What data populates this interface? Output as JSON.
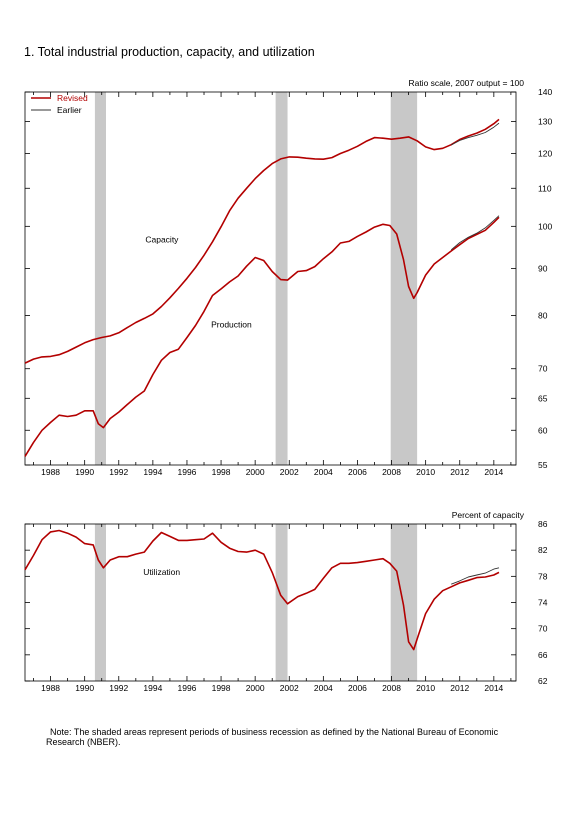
{
  "title": "1. Total industrial production, capacity, and utilization",
  "note": "Note: The shaded areas represent periods of business recession as defined by the National Bureau of Economic Research (NBER).",
  "chart_data": [
    {
      "type": "line",
      "ylabel": "Ratio scale, 2007 output = 100",
      "y_scale": "log",
      "ylim": [
        55,
        140
      ],
      "xlim": [
        1986.5,
        2015.3
      ],
      "y_ticks": [
        55,
        60,
        65,
        70,
        80,
        90,
        100,
        110,
        120,
        130,
        140
      ],
      "x_ticks": [
        1988,
        1990,
        1992,
        1994,
        1996,
        1998,
        2000,
        2002,
        2004,
        2006,
        2008,
        2010,
        2012,
        2014
      ],
      "recessions": [
        [
          1990.6,
          1991.25
        ],
        [
          2001.2,
          2001.9
        ],
        [
          2007.95,
          2009.5
        ]
      ],
      "legend": {
        "position": "top-left",
        "entries": [
          "Revised",
          "Earlier"
        ]
      },
      "annotations": [
        "Capacity",
        "Production"
      ],
      "series": [
        {
          "name": "Capacity",
          "style": "revised",
          "x": [
            1986.5,
            1987.0,
            1987.5,
            1988.0,
            1988.5,
            1989.0,
            1989.5,
            1990.0,
            1990.5,
            1991.0,
            1991.5,
            1992.0,
            1992.5,
            1993.0,
            1993.5,
            1994.0,
            1994.5,
            1995.0,
            1995.5,
            1996.0,
            1996.5,
            1997.0,
            1997.5,
            1998.0,
            1998.5,
            1999.0,
            1999.5,
            2000.0,
            2000.5,
            2001.0,
            2001.5,
            2002.0,
            2002.5,
            2003.0,
            2003.5,
            2004.0,
            2004.5,
            2005.0,
            2005.5,
            2006.0,
            2006.5,
            2007.0,
            2007.5,
            2008.0,
            2008.5,
            2009.0,
            2009.5,
            2010.0,
            2010.5,
            2011.0,
            2011.5,
            2012.0,
            2012.5,
            2013.0,
            2013.5,
            2014.0,
            2014.3
          ],
          "y": [
            71.0,
            71.7,
            72.1,
            72.2,
            72.5,
            73.1,
            73.9,
            74.7,
            75.3,
            75.7,
            76.0,
            76.6,
            77.6,
            78.6,
            79.4,
            80.3,
            81.8,
            83.6,
            85.6,
            87.8,
            90.2,
            93.0,
            96.2,
            99.9,
            104.0,
            107.3,
            110.0,
            112.7,
            115.0,
            117.0,
            118.4,
            119.0,
            118.9,
            118.6,
            118.4,
            118.3,
            118.8,
            120.0,
            121.0,
            122.2,
            123.7,
            124.9,
            124.7,
            124.4,
            124.7,
            125.1,
            123.9,
            122.0,
            121.2,
            121.6,
            122.7,
            124.3,
            125.4,
            126.3,
            127.5,
            129.3,
            130.7
          ]
        },
        {
          "name": "Capacity",
          "style": "earlier",
          "x": [
            2011.5,
            2012.0,
            2012.5,
            2013.0,
            2013.5,
            2014.0,
            2014.3
          ],
          "y": [
            122.6,
            124.0,
            124.9,
            125.6,
            126.5,
            128.2,
            129.5
          ]
        },
        {
          "name": "Production",
          "style": "revised",
          "x": [
            1986.5,
            1987.0,
            1987.5,
            1988.0,
            1988.5,
            1989.0,
            1989.5,
            1990.0,
            1990.5,
            1990.8,
            1991.1,
            1991.5,
            1992.0,
            1992.5,
            1993.0,
            1993.5,
            1994.0,
            1994.5,
            1995.0,
            1995.5,
            1996.0,
            1996.5,
            1997.0,
            1997.5,
            1998.0,
            1998.5,
            1999.0,
            1999.5,
            2000.0,
            2000.5,
            2001.0,
            2001.5,
            2001.9,
            2002.5,
            2003.0,
            2003.5,
            2004.0,
            2004.5,
            2005.0,
            2005.5,
            2006.0,
            2006.5,
            2007.0,
            2007.5,
            2007.9,
            2008.3,
            2008.7,
            2009.0,
            2009.3,
            2009.5,
            2010.0,
            2010.5,
            2011.0,
            2011.5,
            2012.0,
            2012.5,
            2013.0,
            2013.5,
            2014.0,
            2014.3
          ],
          "y": [
            56.2,
            58.2,
            60.0,
            61.2,
            62.3,
            62.1,
            62.3,
            63.0,
            63.0,
            61.0,
            60.4,
            61.8,
            62.8,
            64.0,
            65.2,
            66.2,
            69.0,
            71.5,
            72.9,
            73.5,
            75.7,
            78.0,
            80.8,
            84.1,
            85.5,
            87.0,
            88.3,
            90.5,
            92.5,
            91.8,
            89.3,
            87.5,
            87.4,
            89.3,
            89.5,
            90.4,
            92.2,
            93.8,
            95.9,
            96.3,
            97.5,
            98.6,
            99.8,
            100.5,
            100.2,
            98.1,
            92.0,
            86.0,
            83.5,
            84.7,
            88.5,
            91.0,
            92.5,
            94.0,
            95.5,
            97.0,
            98.0,
            99.0,
            101.0,
            102.3
          ]
        },
        {
          "name": "Production",
          "style": "earlier",
          "x": [
            2011.5,
            2012.0,
            2012.5,
            2013.0,
            2013.5,
            2014.0,
            2014.3
          ],
          "y": [
            94.3,
            96.0,
            97.3,
            98.3,
            99.6,
            101.5,
            102.7
          ]
        }
      ]
    },
    {
      "type": "line",
      "ylabel": "Percent of capacity",
      "ylim": [
        62,
        86
      ],
      "xlim": [
        1986.5,
        2015.3
      ],
      "y_ticks": [
        62,
        66,
        70,
        74,
        78,
        82,
        86
      ],
      "x_ticks": [
        1988,
        1990,
        1992,
        1994,
        1996,
        1998,
        2000,
        2002,
        2004,
        2006,
        2008,
        2010,
        2012,
        2014
      ],
      "recessions": [
        [
          1990.6,
          1991.25
        ],
        [
          2001.2,
          2001.9
        ],
        [
          2007.95,
          2009.5
        ]
      ],
      "annotations": [
        "Utilization"
      ],
      "series": [
        {
          "name": "Utilization",
          "style": "revised",
          "x": [
            1986.5,
            1987.0,
            1987.5,
            1988.0,
            1988.5,
            1989.0,
            1989.5,
            1990.0,
            1990.5,
            1990.8,
            1991.1,
            1991.5,
            1992.0,
            1992.5,
            1993.0,
            1993.5,
            1994.0,
            1994.5,
            1995.0,
            1995.5,
            1996.0,
            1996.5,
            1997.0,
            1997.5,
            1998.0,
            1998.5,
            1999.0,
            1999.5,
            2000.0,
            2000.5,
            2001.0,
            2001.5,
            2001.9,
            2002.5,
            2003.0,
            2003.5,
            2004.0,
            2004.5,
            2005.0,
            2005.5,
            2006.0,
            2006.5,
            2007.0,
            2007.5,
            2007.9,
            2008.3,
            2008.7,
            2009.0,
            2009.3,
            2009.5,
            2010.0,
            2010.5,
            2011.0,
            2011.5,
            2012.0,
            2012.5,
            2013.0,
            2013.5,
            2014.0,
            2014.3
          ],
          "y": [
            79.0,
            81.2,
            83.6,
            84.8,
            85.0,
            84.6,
            84.0,
            83.0,
            82.8,
            80.5,
            79.3,
            80.5,
            81.0,
            81.0,
            81.4,
            81.7,
            83.4,
            84.7,
            84.1,
            83.5,
            83.5,
            83.6,
            83.7,
            84.6,
            83.2,
            82.3,
            81.8,
            81.7,
            82.0,
            81.4,
            78.6,
            75.1,
            73.8,
            74.9,
            75.4,
            76.0,
            77.7,
            79.3,
            80.0,
            80.0,
            80.1,
            80.3,
            80.5,
            80.7,
            80.0,
            78.8,
            73.6,
            68.0,
            66.8,
            68.4,
            72.3,
            74.5,
            75.8,
            76.4,
            77.0,
            77.4,
            77.8,
            77.9,
            78.2,
            78.6
          ]
        },
        {
          "name": "Utilization",
          "style": "earlier",
          "x": [
            2011.5,
            2012.0,
            2012.5,
            2013.0,
            2013.5,
            2014.0,
            2014.3
          ],
          "y": [
            76.8,
            77.3,
            77.9,
            78.2,
            78.5,
            79.1,
            79.3
          ]
        }
      ]
    }
  ]
}
